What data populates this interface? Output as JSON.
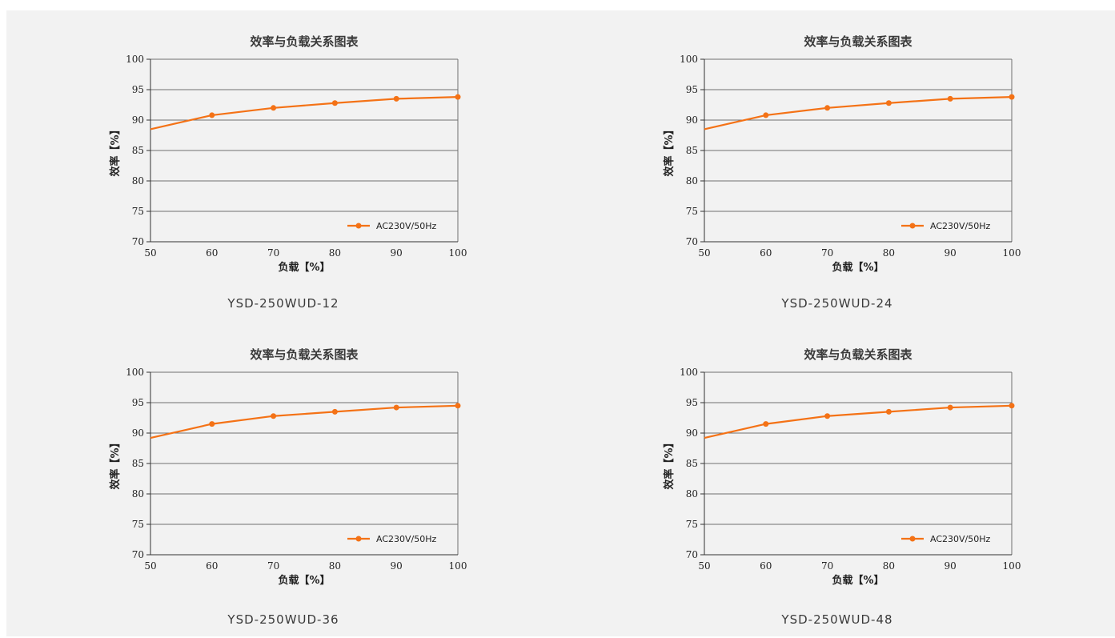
{
  "colors": {
    "series": "#f47216",
    "grid": "#707070",
    "panel": "#f2f2f2"
  },
  "chart_data": [
    {
      "type": "line",
      "title": "效率与负载关系图表",
      "xlabel": "负载【%】",
      "ylabel": "效率【%】",
      "xlim": [
        50,
        100
      ],
      "ylim": [
        70,
        100
      ],
      "xticks": [
        "50",
        "60",
        "70",
        "80",
        "90",
        "100"
      ],
      "yticks": [
        "70",
        "75",
        "80",
        "85",
        "90",
        "95",
        "100"
      ],
      "grid": true,
      "legend_position": "bottom-right",
      "series": [
        {
          "name": "AC230V/50Hz",
          "x": [
            50,
            60,
            70,
            80,
            90,
            100
          ],
          "y": [
            88.5,
            90.8,
            92.0,
            92.8,
            93.5,
            93.8
          ]
        }
      ],
      "caption": "YSD-250WUD-12"
    },
    {
      "type": "line",
      "title": "效率与负载关系图表",
      "xlabel": "负载【%】",
      "ylabel": "效率【%】",
      "xlim": [
        50,
        100
      ],
      "ylim": [
        70,
        100
      ],
      "xticks": [
        "50",
        "60",
        "70",
        "80",
        "90",
        "100"
      ],
      "yticks": [
        "70",
        "75",
        "80",
        "85",
        "90",
        "95",
        "100"
      ],
      "grid": true,
      "legend_position": "bottom-right",
      "series": [
        {
          "name": "AC230V/50Hz",
          "x": [
            50,
            60,
            70,
            80,
            90,
            100
          ],
          "y": [
            88.5,
            90.8,
            92.0,
            92.8,
            93.5,
            93.8
          ]
        }
      ],
      "caption": "YSD-250WUD-24"
    },
    {
      "type": "line",
      "title": "效率与负载关系图表",
      "xlabel": "负载【%】",
      "ylabel": "效率【%】",
      "xlim": [
        50,
        100
      ],
      "ylim": [
        70,
        100
      ],
      "xticks": [
        "50",
        "60",
        "70",
        "80",
        "90",
        "100"
      ],
      "yticks": [
        "70",
        "75",
        "80",
        "85",
        "90",
        "95",
        "100"
      ],
      "grid": true,
      "legend_position": "bottom-right",
      "series": [
        {
          "name": "AC230V/50Hz",
          "x": [
            50,
            60,
            70,
            80,
            90,
            100
          ],
          "y": [
            89.2,
            91.5,
            92.8,
            93.5,
            94.2,
            94.5
          ]
        }
      ],
      "caption": "YSD-250WUD-36"
    },
    {
      "type": "line",
      "title": "效率与负载关系图表",
      "xlabel": "负载【%】",
      "ylabel": "效率【%】",
      "xlim": [
        50,
        100
      ],
      "ylim": [
        70,
        100
      ],
      "xticks": [
        "50",
        "60",
        "70",
        "80",
        "90",
        "100"
      ],
      "yticks": [
        "70",
        "75",
        "80",
        "85",
        "90",
        "95",
        "100"
      ],
      "grid": true,
      "legend_position": "bottom-right",
      "series": [
        {
          "name": "AC230V/50Hz",
          "x": [
            50,
            60,
            70,
            80,
            90,
            100
          ],
          "y": [
            89.2,
            91.5,
            92.8,
            93.5,
            94.2,
            94.5
          ]
        }
      ],
      "caption": "YSD-250WUD-48"
    }
  ]
}
